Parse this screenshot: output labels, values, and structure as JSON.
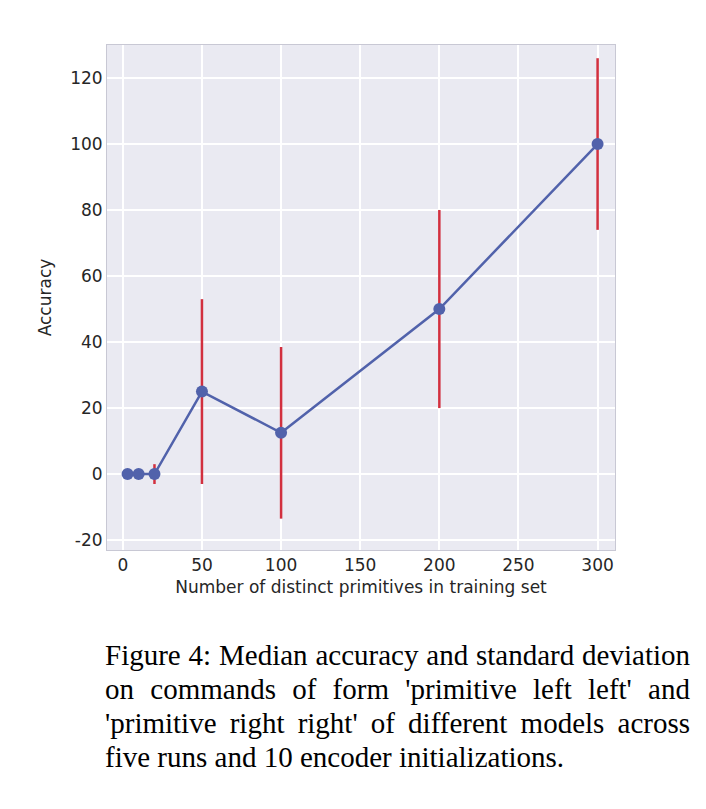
{
  "chart_data": {
    "type": "line",
    "caption": "Figure 4: Median accuracy and standard deviation on commands of form 'primitive left left' and 'primitive right right' of different models across five runs and 10 encoder initializations.",
    "x_label": "Number of distinct primitives in training set",
    "y_label": "Accuracy",
    "x": [
      3,
      10,
      20,
      50,
      100,
      200,
      300
    ],
    "series": [
      {
        "name": "Median accuracy",
        "color": "#5162ab",
        "values": [
          0,
          0,
          0,
          25,
          12.5,
          50,
          100
        ],
        "errors": [
          0,
          0,
          3,
          28,
          26,
          30,
          26
        ]
      }
    ],
    "xlim": [
      -10,
      311
    ],
    "xticks": [
      0,
      50,
      100,
      150,
      200,
      250,
      300
    ],
    "ylim": [
      -23,
      130
    ],
    "yticks": [
      -20,
      0,
      20,
      40,
      60,
      80,
      100,
      120
    ],
    "grid": true,
    "marker": "circle"
  }
}
